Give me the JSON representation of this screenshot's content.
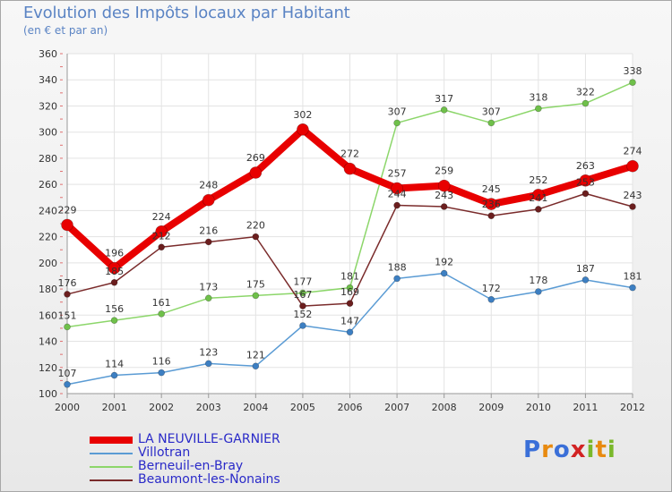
{
  "header": {
    "title": "Evolution des Impôts locaux par Habitant",
    "subtitle": "(en € et par an)"
  },
  "logo": {
    "text": "Proxiti",
    "letters": [
      "P",
      "r",
      "o",
      "x",
      "i",
      "t",
      "i"
    ],
    "colors": [
      "#3a6fd8",
      "#e88a10",
      "#3a6fd8",
      "#d22323",
      "#7ab82b",
      "#e88a10",
      "#7ab82b"
    ]
  },
  "chart_data": {
    "type": "line",
    "title": "Evolution des Impôts locaux par Habitant",
    "subtitle": "(en € et par an)",
    "xlabel": "",
    "ylabel": "",
    "categories": [
      "2000",
      "2001",
      "2002",
      "2003",
      "2004",
      "2005",
      "2006",
      "2007",
      "2008",
      "2009",
      "2010",
      "2011",
      "2012"
    ],
    "ylim": [
      100,
      360
    ],
    "yticks": [
      100,
      120,
      140,
      160,
      180,
      200,
      220,
      240,
      260,
      280,
      300,
      320,
      340,
      360
    ],
    "grid": true,
    "legend_position": "bottom-left",
    "series": [
      {
        "name": "Villotran",
        "color": "#5a9bd4",
        "marker": "#3d7fc2",
        "width": 1.5,
        "marker_r": 3.5,
        "values": [
          107,
          114,
          116,
          123,
          121,
          152,
          147,
          188,
          192,
          172,
          178,
          187,
          181
        ]
      },
      {
        "name": "Berneuil-en-Bray",
        "color": "#8cd66a",
        "marker": "#6fc04a",
        "width": 1.5,
        "marker_r": 3.5,
        "values": [
          151,
          156,
          161,
          173,
          175,
          177,
          181,
          307,
          317,
          307,
          318,
          322,
          338
        ]
      },
      {
        "name": "Beaumont-les-Nonains",
        "color": "#7a2b2b",
        "marker": "#6b1e1e",
        "width": 1.5,
        "marker_r": 3.5,
        "values": [
          176,
          185,
          212,
          216,
          220,
          167,
          169,
          244,
          243,
          236,
          241,
          253,
          243
        ]
      },
      {
        "name": "LA NEUVILLE-GARNIER",
        "color": "#e80000",
        "marker": "#e80000",
        "width": 8,
        "marker_r": 6.5,
        "values": [
          229,
          196,
          224,
          248,
          269,
          302,
          272,
          257,
          259,
          245,
          252,
          263,
          274
        ]
      }
    ],
    "legend_order": [
      "LA NEUVILLE-GARNIER",
      "Villotran",
      "Berneuil-en-Bray",
      "Beaumont-les-Nonains"
    ]
  }
}
